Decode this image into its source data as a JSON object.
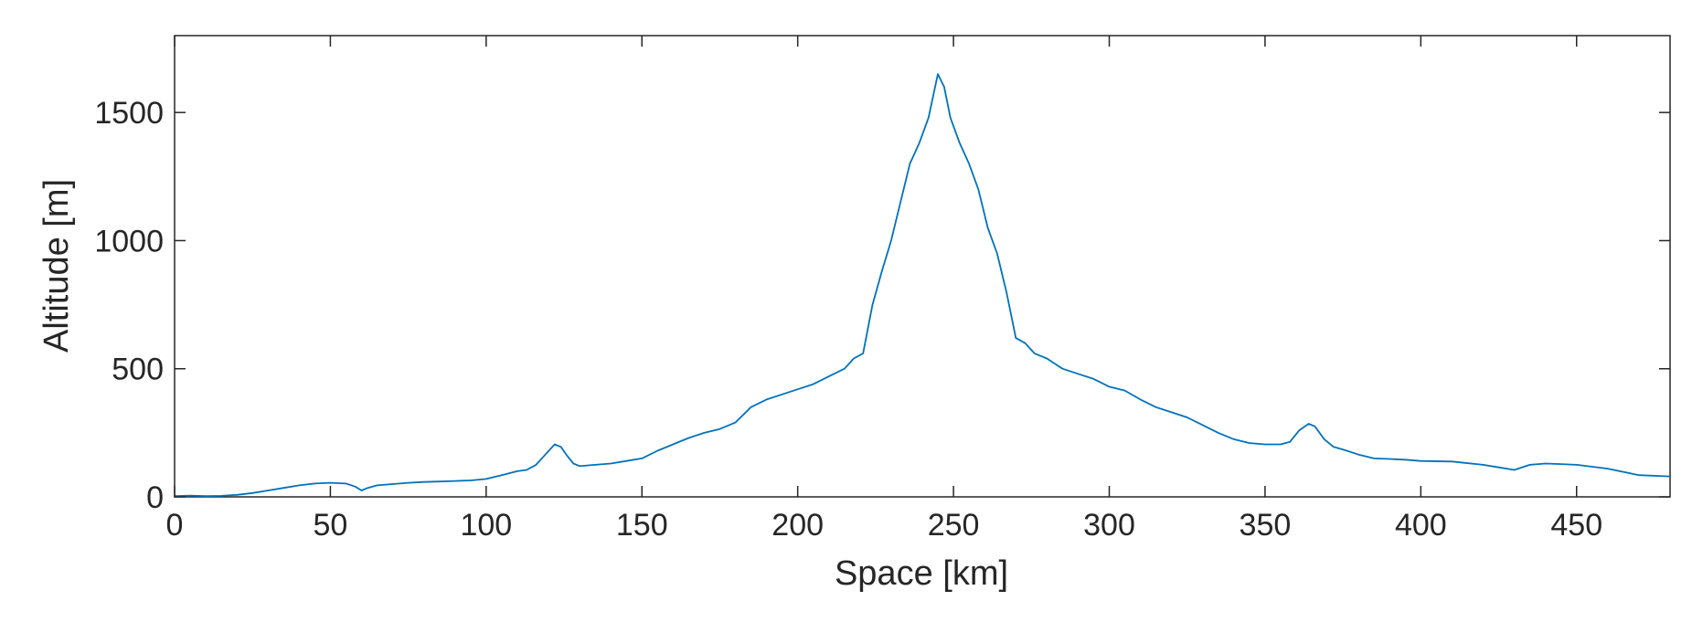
{
  "chart_data": {
    "type": "line",
    "xlabel": "Space [km]",
    "ylabel": "Altitude [m]",
    "xlim": [
      0,
      480
    ],
    "ylim": [
      0,
      1800
    ],
    "xticks": [
      0,
      50,
      100,
      150,
      200,
      250,
      300,
      350,
      400,
      450
    ],
    "yticks": [
      0,
      500,
      1000,
      1500
    ],
    "grid": false,
    "line_color": "#0072BD",
    "series": [
      {
        "x": [
          0,
          5,
          10,
          15,
          20,
          25,
          30,
          35,
          40,
          45,
          50,
          55,
          58,
          60,
          62,
          65,
          70,
          75,
          80,
          85,
          90,
          95,
          100,
          105,
          110,
          113,
          116,
          119,
          122,
          124,
          126,
          128,
          130,
          135,
          140,
          145,
          150,
          155,
          160,
          165,
          170,
          175,
          180,
          185,
          190,
          195,
          200,
          205,
          210,
          215,
          218,
          221,
          224,
          227,
          230,
          233,
          236,
          239,
          242,
          245,
          247,
          249,
          252,
          255,
          258,
          261,
          264,
          267,
          270,
          273,
          276,
          280,
          285,
          290,
          295,
          300,
          305,
          310,
          315,
          320,
          325,
          330,
          335,
          340,
          345,
          350,
          355,
          358,
          361,
          364,
          366,
          369,
          372,
          375,
          380,
          385,
          390,
          395,
          400,
          410,
          420,
          425,
          430,
          435,
          440,
          445,
          450,
          460,
          470,
          480
        ],
        "y": [
          3,
          5,
          3,
          4,
          8,
          15,
          25,
          35,
          45,
          52,
          55,
          52,
          40,
          25,
          35,
          45,
          50,
          55,
          58,
          60,
          62,
          64,
          70,
          85,
          100,
          105,
          125,
          165,
          205,
          195,
          160,
          130,
          120,
          125,
          130,
          140,
          150,
          180,
          205,
          230,
          250,
          265,
          290,
          350,
          380,
          400,
          420,
          440,
          470,
          500,
          540,
          560,
          750,
          880,
          1000,
          1150,
          1300,
          1380,
          1480,
          1650,
          1600,
          1480,
          1380,
          1300,
          1200,
          1050,
          950,
          800,
          620,
          600,
          560,
          540,
          500,
          480,
          460,
          430,
          415,
          380,
          350,
          330,
          310,
          280,
          250,
          225,
          210,
          205,
          205,
          215,
          260,
          285,
          275,
          225,
          195,
          185,
          165,
          150,
          148,
          145,
          140,
          138,
          125,
          115,
          105,
          125,
          130,
          128,
          125,
          110,
          85,
          80
        ]
      }
    ]
  }
}
